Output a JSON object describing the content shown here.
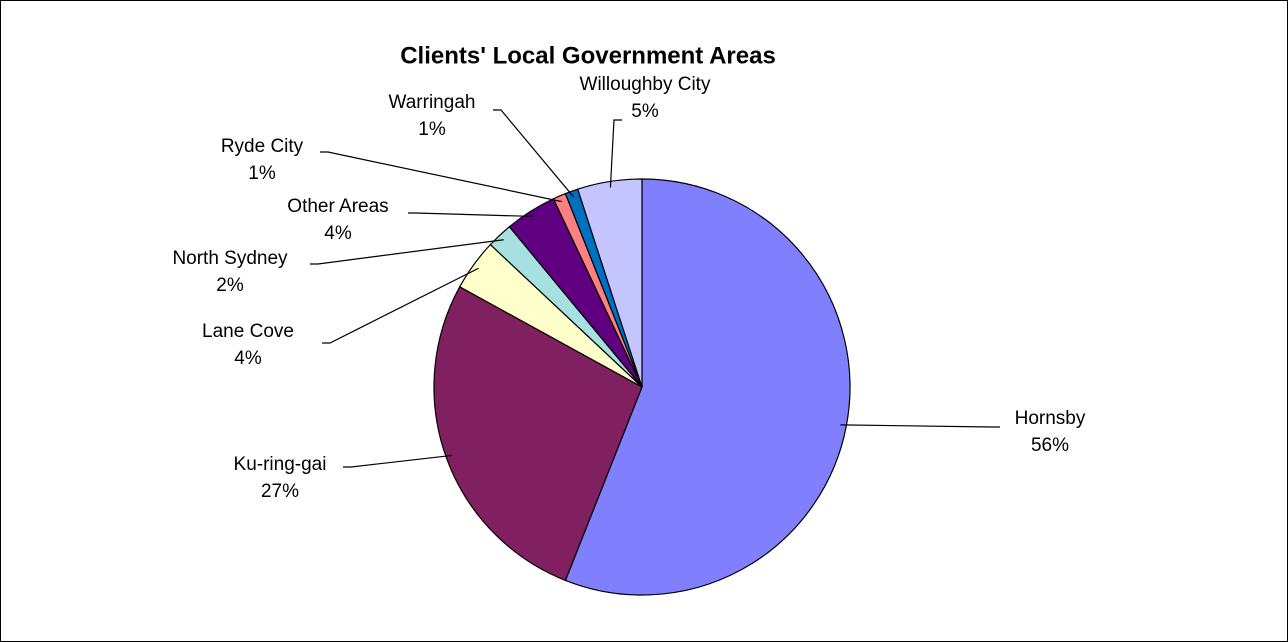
{
  "chart_data": {
    "type": "pie",
    "title": "Clients' Local Government Areas",
    "categories": [
      "Hornsby",
      "Ku-ring-gai",
      "Lane Cove",
      "North Sydney",
      "Other Areas",
      "Ryde City",
      "Warringah",
      "Willoughby City"
    ],
    "values": [
      56,
      27,
      4,
      2,
      4,
      1,
      1,
      5
    ],
    "value_labels": [
      "56%",
      "27%",
      "4%",
      "2%",
      "4%",
      "1%",
      "1%",
      "5%"
    ],
    "colors": [
      "#8080ff",
      "#802060",
      "#ffffcc",
      "#a6e0e0",
      "#600080",
      "#ff8080",
      "#0070c0",
      "#c4c4ff"
    ]
  }
}
